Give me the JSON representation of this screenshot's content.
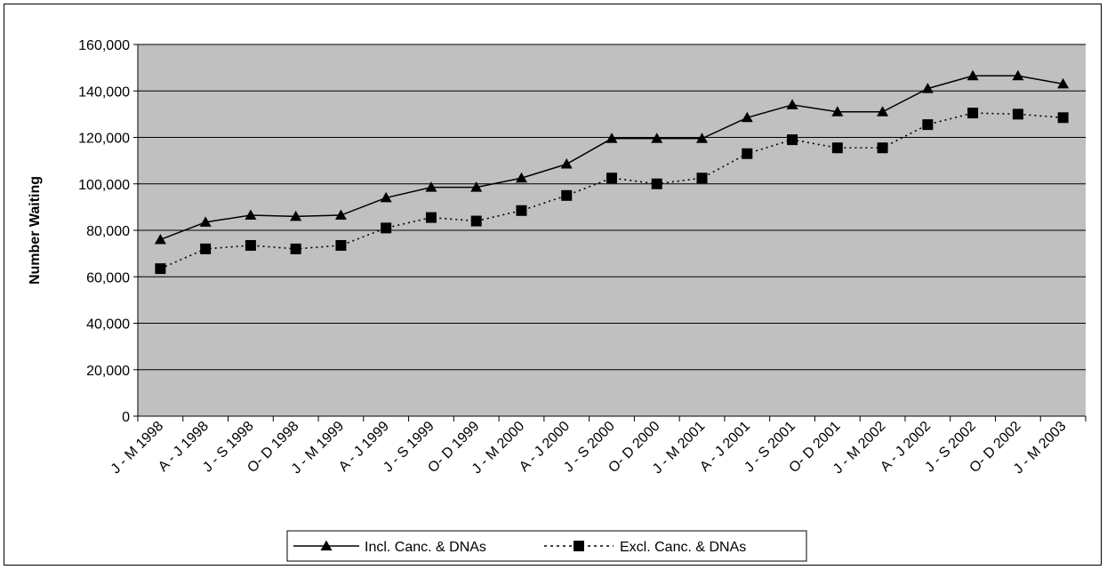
{
  "chart_data": {
    "type": "line",
    "title": "",
    "xlabel": "",
    "ylabel": "Number Waiting",
    "ylim": [
      0,
      160000
    ],
    "yticks": [
      "0",
      "20,000",
      "40,000",
      "60,000",
      "80,000",
      "100,000",
      "120,000",
      "140,000",
      "160,000"
    ],
    "yticks_values": [
      0,
      20000,
      40000,
      60000,
      80000,
      100000,
      120000,
      140000,
      160000
    ],
    "grid": true,
    "legend_position": "bottom",
    "plot_background": "#c0c0c0",
    "categories": [
      "J - M 1998",
      "A - J 1998",
      "J - S 1998",
      "O- D 1998",
      "J - M 1999",
      "A - J 1999",
      "J - S 1999",
      "O- D 1999",
      "J - M 2000",
      "A - J 2000",
      "J - S 2000",
      "O- D 2000",
      "J - M 2001",
      "A - J 2001",
      "J - S 2001",
      "O- D 2001",
      "J - M 2002",
      "A - J 2002",
      "J - S 2002",
      "O- D 2002",
      "J - M 2003"
    ],
    "series": [
      {
        "name": "Incl. Canc. & DNAs",
        "marker": "triangle",
        "line_style": "solid",
        "color": "#000000",
        "values": [
          76000,
          83500,
          86500,
          86000,
          86500,
          94000,
          98500,
          98500,
          102500,
          108500,
          119500,
          119500,
          119500,
          128500,
          134000,
          131000,
          131000,
          141000,
          146500,
          146500,
          143000
        ]
      },
      {
        "name": "Excl. Canc. & DNAs",
        "marker": "square",
        "line_style": "dotted",
        "color": "#000000",
        "values": [
          63500,
          72000,
          73500,
          72000,
          73500,
          81000,
          85500,
          84000,
          88500,
          95000,
          102500,
          100000,
          102500,
          113000,
          119000,
          115500,
          115500,
          125500,
          130500,
          130000,
          128500
        ]
      }
    ]
  }
}
